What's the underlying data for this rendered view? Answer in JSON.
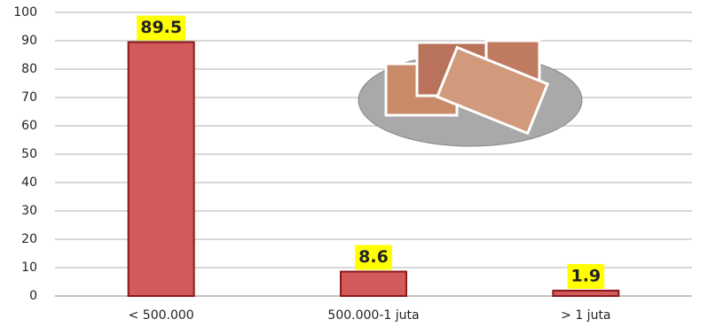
{
  "chart_data": {
    "type": "bar",
    "categories": [
      "< 500.000",
      "500.000-1 juta",
      "> 1 juta"
    ],
    "values": [
      89.5,
      8.6,
      1.9
    ],
    "color": "#d25a5a",
    "ylim": [
      0,
      100
    ],
    "yticks": [
      0,
      10,
      20,
      30,
      40,
      50,
      60,
      70,
      80,
      90,
      100
    ],
    "grid": true
  }
}
